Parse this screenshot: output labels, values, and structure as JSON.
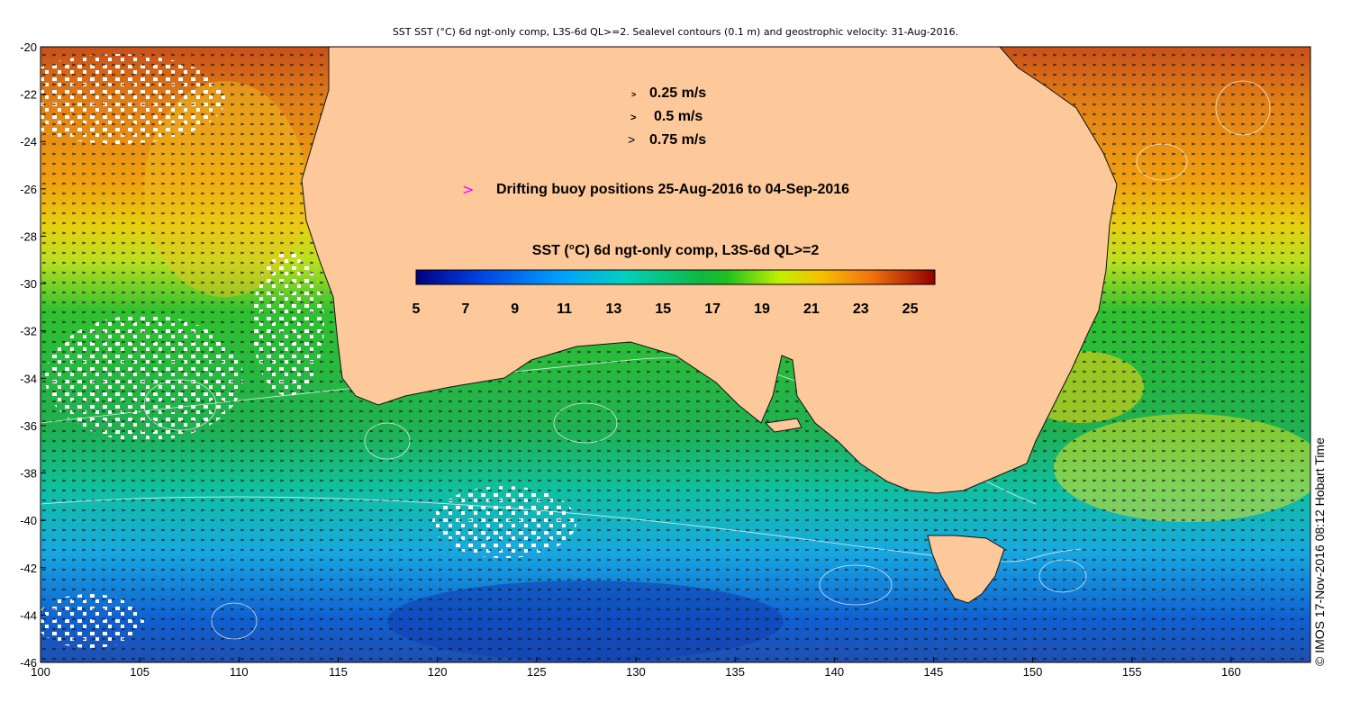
{
  "title": "SST SST (°C) 6d ngt-only comp, L3S-6d QL>=2. Sealevel contours (0.1 m) and geostrophic velocity: 31-Aug-2016.",
  "legend": {
    "speeds": [
      "0.25 m/s",
      "0.5 m/s",
      "0.75 m/s"
    ],
    "speed_arrow_glyph": ">",
    "buoy_marker_glyph": ">",
    "buoy_text": "Drifting buoy positions 25-Aug-2016 to 04-Sep-2016",
    "buoy_color": "#ff00ff"
  },
  "colorbar": {
    "title": "SST (°C) 6d ngt-only comp, L3S-6d QL>=2",
    "tick_labels": [
      "5",
      "7",
      "9",
      "11",
      "13",
      "15",
      "17",
      "19",
      "21",
      "23",
      "25"
    ],
    "range": [
      5,
      26
    ]
  },
  "axes": {
    "x_ticks": [
      "100",
      "105",
      "110",
      "115",
      "120",
      "125",
      "130",
      "135",
      "140",
      "145",
      "150",
      "155",
      "160"
    ],
    "y_ticks": [
      "-20",
      "-22",
      "-24",
      "-26",
      "-28",
      "-30",
      "-32",
      "-34",
      "-36",
      "-38",
      "-40",
      "-42",
      "-44",
      "-46"
    ],
    "lon_range": [
      100,
      164
    ],
    "lat_range": [
      -46,
      -20
    ]
  },
  "credit": "© IMOS 17-Nov-2016 08:12 Hobart Time",
  "colors": {
    "land": "#fdc89a",
    "sst_warm": "#e07a10",
    "sst_mid": "#20b020",
    "sst_cool": "#18a0e0",
    "sst_cold": "#1040c0"
  }
}
